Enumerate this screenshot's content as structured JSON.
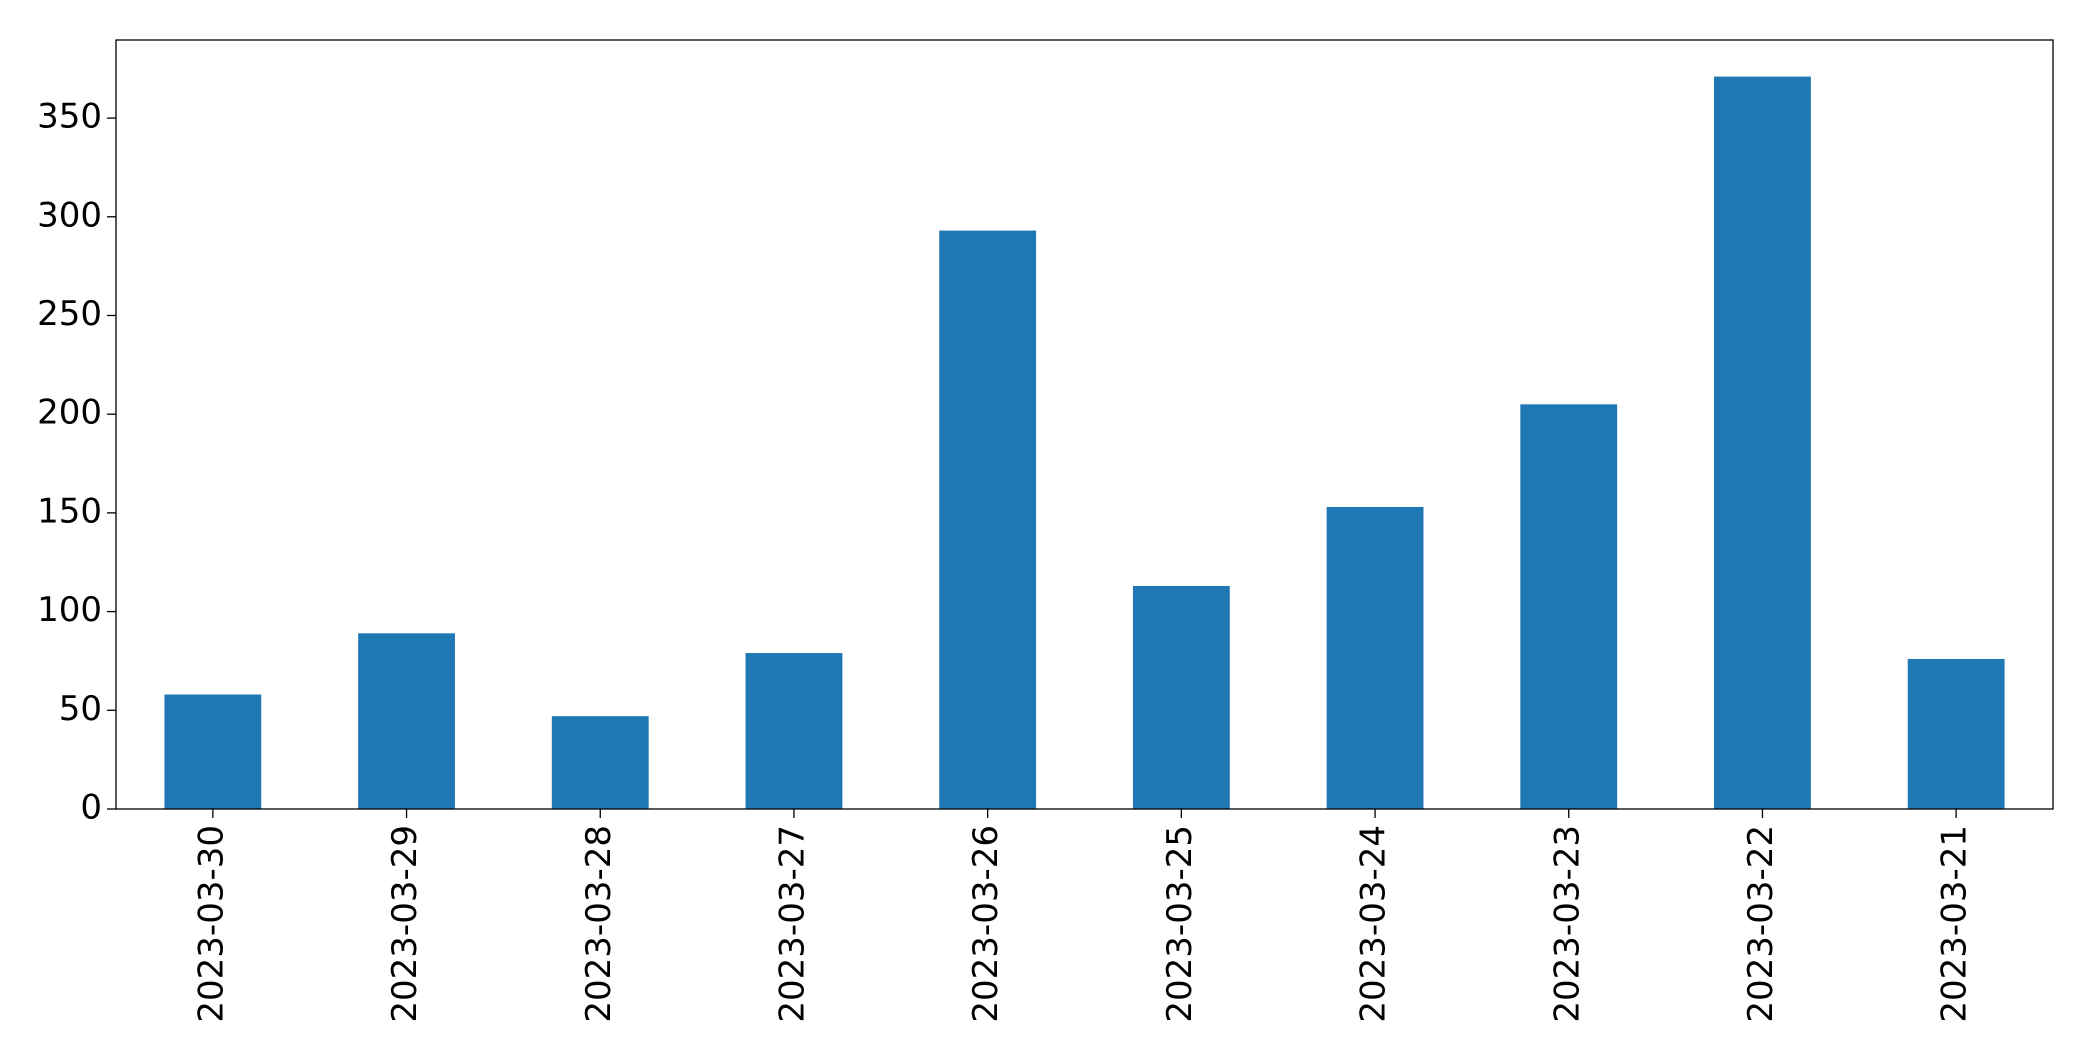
{
  "chart_data": {
    "type": "bar",
    "categories": [
      "2023-03-30",
      "2023-03-29",
      "2023-03-28",
      "2023-03-27",
      "2023-03-26",
      "2023-03-25",
      "2023-03-24",
      "2023-03-23",
      "2023-03-22",
      "2023-03-21"
    ],
    "values": [
      58,
      89,
      47,
      79,
      293,
      113,
      153,
      205,
      371,
      76
    ],
    "color": "#1f77b4",
    "ylim": [
      0,
      389.55
    ],
    "yticks": [
      0,
      50,
      100,
      150,
      200,
      250,
      300,
      350
    ],
    "grid": false
  }
}
